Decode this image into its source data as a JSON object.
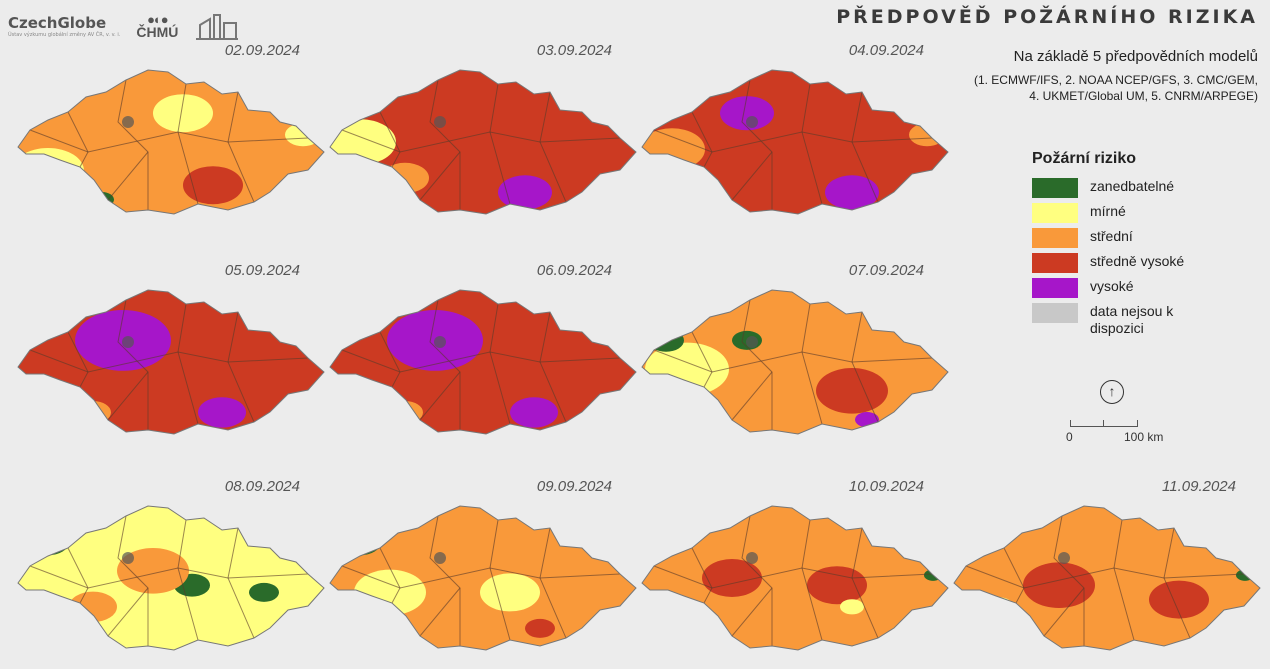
{
  "header": {
    "logo_czechglobe": "CzechGlobe",
    "logo_czechglobe_sub": "Ústav výzkumu globální změny AV ČR, v. v. i.",
    "logo_chmu": "ČHMÚ",
    "title": "PŘEDPOVĚĎ POŽÁRNÍHO RIZIKA",
    "subtitle": "Na základě 5 předpovědních modelů",
    "models_line1": "(1. ECMWF/IFS, 2. NOAA NCEP/GFS, 3. CMC/GEM,",
    "models_line2": "4. UKMET/Global UM, 5. CNRM/ARPEGE)"
  },
  "legend": {
    "title": "Požární riziko",
    "items": [
      {
        "label": "zanedbatelné",
        "color": "#2a6b2a"
      },
      {
        "label": "mírné",
        "color": "#ffff80"
      },
      {
        "label": "střední",
        "color": "#f9993a"
      },
      {
        "label": "středně vysoké",
        "color": "#cc3a22"
      },
      {
        "label": "vysoké",
        "color": "#a616c9"
      },
      {
        "label": "data nejsou k dispozici",
        "color": "#c8c8c8"
      }
    ]
  },
  "scale": {
    "north": "↑",
    "zero": "0",
    "hundred": "100 km"
  },
  "maps": [
    {
      "date": "02.09.2024",
      "base": "#f9993a",
      "blobs": [
        [
          "#ffff80",
          0.1,
          0.7,
          0.12
        ],
        [
          "#ffff80",
          0.55,
          0.3,
          0.1
        ],
        [
          "#cc3a22",
          0.65,
          0.8,
          0.1
        ],
        [
          "#ffff80",
          0.95,
          0.45,
          0.06
        ],
        [
          "#2a6b2a",
          0.28,
          0.9,
          0.04
        ]
      ]
    },
    {
      "date": "03.09.2024",
      "base": "#cc3a22",
      "blobs": [
        [
          "#ffff80",
          0.1,
          0.5,
          0.12
        ],
        [
          "#f9993a",
          0.25,
          0.75,
          0.08
        ],
        [
          "#a616c9",
          0.65,
          0.85,
          0.09
        ],
        [
          "#2a6b2a",
          0.18,
          0.85,
          0.04
        ]
      ]
    },
    {
      "date": "04.09.2024",
      "base": "#cc3a22",
      "blobs": [
        [
          "#f9993a",
          0.1,
          0.55,
          0.11
        ],
        [
          "#a616c9",
          0.35,
          0.3,
          0.09
        ],
        [
          "#a616c9",
          0.7,
          0.85,
          0.09
        ],
        [
          "#f9993a",
          0.95,
          0.45,
          0.06
        ]
      ]
    },
    {
      "date": "05.09.2024",
      "base": "#cc3a22",
      "blobs": [
        [
          "#a616c9",
          0.35,
          0.35,
          0.16
        ],
        [
          "#a616c9",
          0.68,
          0.85,
          0.08
        ],
        [
          "#f9993a",
          0.25,
          0.85,
          0.06
        ]
      ]
    },
    {
      "date": "06.09.2024",
      "base": "#cc3a22",
      "blobs": [
        [
          "#a616c9",
          0.35,
          0.35,
          0.16
        ],
        [
          "#a616c9",
          0.68,
          0.85,
          0.08
        ],
        [
          "#f9993a",
          0.25,
          0.85,
          0.06
        ]
      ]
    },
    {
      "date": "07.09.2024",
      "base": "#f9993a",
      "blobs": [
        [
          "#ffff80",
          0.15,
          0.55,
          0.14
        ],
        [
          "#2a6b2a",
          0.08,
          0.35,
          0.06
        ],
        [
          "#2a6b2a",
          0.35,
          0.35,
          0.05
        ],
        [
          "#cc3a22",
          0.7,
          0.7,
          0.12
        ],
        [
          "#a616c9",
          0.75,
          0.9,
          0.04
        ]
      ]
    },
    {
      "date": "08.09.2024",
      "base": "#ffff80",
      "blobs": [
        [
          "#2a6b2a",
          0.1,
          0.25,
          0.07
        ],
        [
          "#2a6b2a",
          0.58,
          0.55,
          0.06
        ],
        [
          "#2a6b2a",
          0.82,
          0.6,
          0.05
        ],
        [
          "#f9993a",
          0.45,
          0.45,
          0.12
        ],
        [
          "#f9993a",
          0.25,
          0.7,
          0.08
        ]
      ]
    },
    {
      "date": "09.09.2024",
      "base": "#f9993a",
      "blobs": [
        [
          "#ffff80",
          0.2,
          0.6,
          0.12
        ],
        [
          "#ffff80",
          0.6,
          0.6,
          0.1
        ],
        [
          "#2a6b2a",
          0.1,
          0.25,
          0.07
        ],
        [
          "#cc3a22",
          0.7,
          0.85,
          0.05
        ]
      ]
    },
    {
      "date": "10.09.2024",
      "base": "#f9993a",
      "blobs": [
        [
          "#cc3a22",
          0.3,
          0.5,
          0.1
        ],
        [
          "#cc3a22",
          0.65,
          0.55,
          0.1
        ],
        [
          "#ffff80",
          0.7,
          0.7,
          0.04
        ],
        [
          "#2a6b2a",
          0.97,
          0.48,
          0.03
        ]
      ]
    },
    {
      "date": "11.09.2024",
      "base": "#f9993a",
      "blobs": [
        [
          "#cc3a22",
          0.35,
          0.55,
          0.12
        ],
        [
          "#cc3a22",
          0.75,
          0.65,
          0.1
        ],
        [
          "#ffff80",
          0.15,
          0.7,
          0.05
        ],
        [
          "#2a6b2a",
          0.97,
          0.48,
          0.03
        ]
      ]
    }
  ]
}
